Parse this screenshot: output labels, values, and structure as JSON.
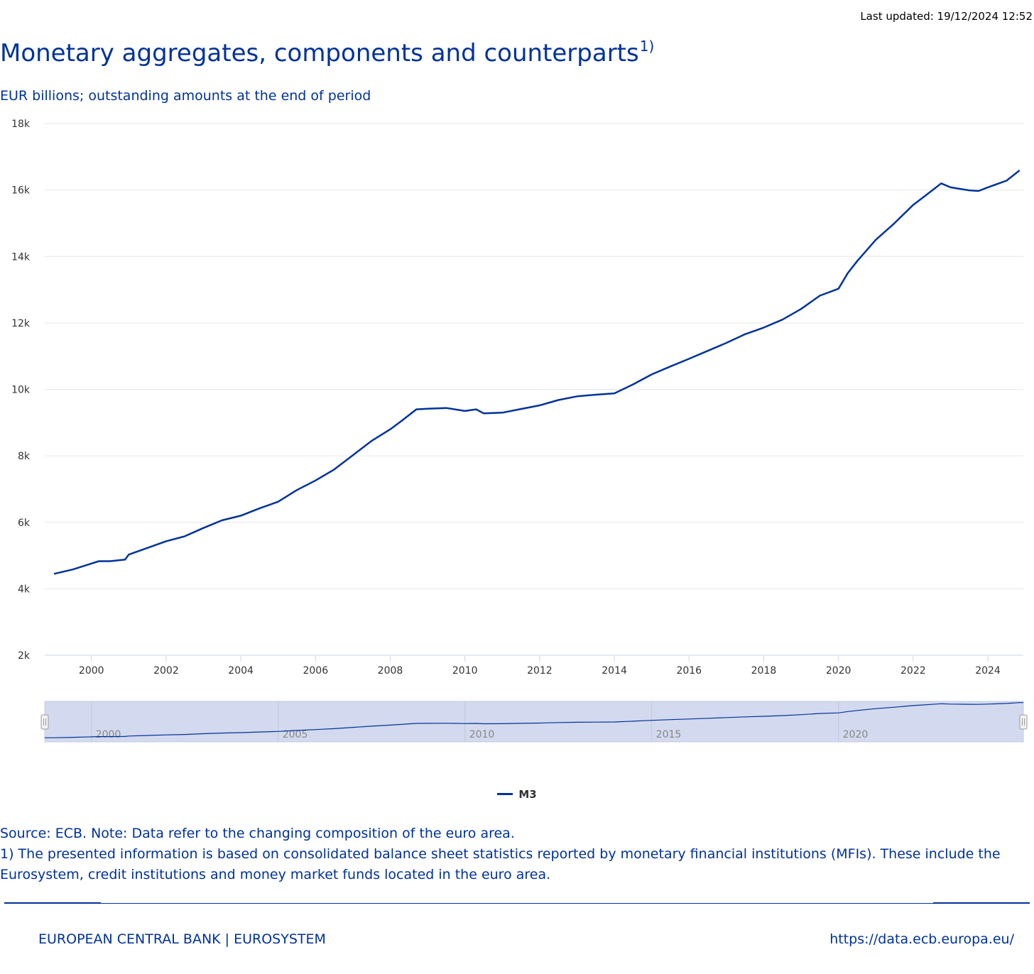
{
  "header": {
    "last_updated": "Last updated: 19/12/2024 12:52",
    "title": "Monetary aggregates, components and counterparts",
    "title_footnote": "1)",
    "subtitle": "EUR billions; outstanding amounts at the end of period"
  },
  "legend": {
    "series_label": "M3"
  },
  "notes": {
    "source": "Source: ECB. Note: Data refer to the changing composition of the euro area.",
    "footnote": "1) The presented information is based on consolidated balance sheet statistics reported by monetary financial institutions (MFIs). These include the Eurosystem, credit institutions and money market funds located in the euro area."
  },
  "footer": {
    "left": "EUROPEAN CENTRAL BANK | EUROSYSTEM",
    "right": "https://data.ecb.europa.eu/"
  },
  "colors": {
    "series": "#003399",
    "text": "#003299",
    "navigator_fill": "#d3d9ee",
    "grid": "#e6e6e6"
  },
  "chart_data": {
    "type": "line",
    "title": "Monetary aggregates, components and counterparts",
    "subtitle": "EUR billions; outstanding amounts at the end of period",
    "xlabel": "",
    "ylabel": "",
    "xlim": [
      1998.75,
      2024.95
    ],
    "ylim": [
      2000,
      18000
    ],
    "y_ticks": [
      2000,
      4000,
      6000,
      8000,
      10000,
      12000,
      14000,
      16000,
      18000
    ],
    "y_tick_labels": [
      "2k",
      "4k",
      "6k",
      "8k",
      "10k",
      "12k",
      "14k",
      "16k",
      "18k"
    ],
    "x_ticks": [
      2000,
      2002,
      2004,
      2006,
      2008,
      2010,
      2012,
      2014,
      2016,
      2018,
      2020,
      2022,
      2024
    ],
    "x_tick_labels": [
      "2000",
      "2002",
      "2004",
      "2006",
      "2008",
      "2010",
      "2012",
      "2014",
      "2016",
      "2018",
      "2020",
      "2022",
      "2024"
    ],
    "navigator_ticks": [
      2000,
      2005,
      2010,
      2015,
      2020
    ],
    "navigator_tick_labels": [
      "2000",
      "2005",
      "2010",
      "2015",
      "2020"
    ],
    "grid": true,
    "legend_position": "bottom-center",
    "series": [
      {
        "name": "M3",
        "x": [
          1999.0,
          1999.5,
          2000.0,
          2000.2,
          2000.5,
          2000.9,
          2001.0,
          2001.5,
          2002.0,
          2002.5,
          2003.0,
          2003.5,
          2004.0,
          2004.5,
          2005.0,
          2005.5,
          2006.0,
          2006.5,
          2007.0,
          2007.5,
          2008.0,
          2008.3,
          2008.7,
          2009.0,
          2009.5,
          2010.0,
          2010.3,
          2010.5,
          2011.0,
          2011.5,
          2012.0,
          2012.5,
          2013.0,
          2013.5,
          2014.0,
          2014.5,
          2015.0,
          2015.5,
          2016.0,
          2016.5,
          2017.0,
          2017.5,
          2018.0,
          2018.5,
          2019.0,
          2019.5,
          2020.0,
          2020.25,
          2020.5,
          2021.0,
          2021.5,
          2022.0,
          2022.5,
          2022.75,
          2023.0,
          2023.5,
          2023.75,
          2024.0,
          2024.5,
          2024.85
        ],
        "values": [
          4450,
          4580,
          4760,
          4830,
          4830,
          4880,
          5030,
          5230,
          5430,
          5580,
          5830,
          6060,
          6200,
          6420,
          6620,
          6970,
          7260,
          7590,
          8020,
          8450,
          8800,
          9050,
          9400,
          9420,
          9440,
          9350,
          9400,
          9280,
          9300,
          9410,
          9520,
          9680,
          9790,
          9840,
          9880,
          10150,
          10450,
          10690,
          10920,
          11160,
          11400,
          11660,
          11860,
          12100,
          12420,
          12820,
          13030,
          13500,
          13860,
          14500,
          15000,
          15550,
          15980,
          16200,
          16080,
          15990,
          15970,
          16080,
          16280,
          16590
        ]
      }
    ]
  }
}
